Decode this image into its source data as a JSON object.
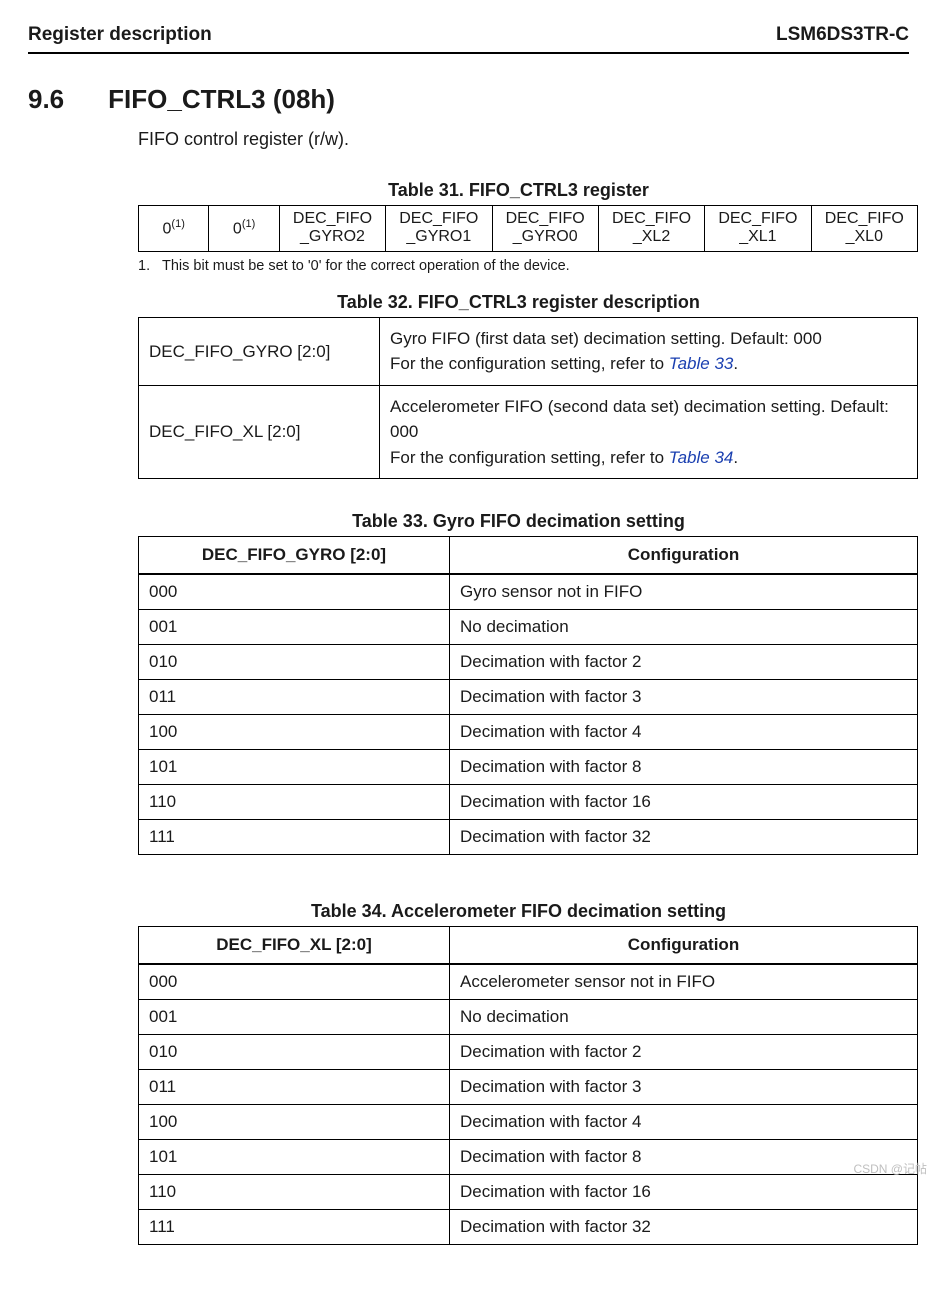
{
  "header": {
    "left": "Register description",
    "right": "LSM6DS3TR-C"
  },
  "section": {
    "number": "9.6",
    "title": "FIFO_CTRL3 (08h)",
    "subtitle": "FIFO control register (r/w)."
  },
  "table31": {
    "caption": "Table 31. FIFO_CTRL3 register",
    "cells": [
      {
        "line1": "0",
        "sup": "(1)"
      },
      {
        "line1": "0",
        "sup": "(1)"
      },
      {
        "line1": "DEC_FIFO",
        "line2": "_GYRO2"
      },
      {
        "line1": "DEC_FIFO",
        "line2": "_GYRO1"
      },
      {
        "line1": "DEC_FIFO",
        "line2": "_GYRO0"
      },
      {
        "line1": "DEC_FIFO",
        "line2": "_XL2"
      },
      {
        "line1": "DEC_FIFO",
        "line2": "_XL1"
      },
      {
        "line1": "DEC_FIFO",
        "line2": "_XL0"
      }
    ],
    "col_widths_pct": [
      9,
      9,
      13.6,
      13.6,
      13.6,
      13.6,
      13.6,
      13.6
    ]
  },
  "footnote": {
    "num": "1.",
    "text": "This bit must be set to '0' for the correct operation of the device."
  },
  "table32": {
    "caption": "Table 32. FIFO_CTRL3 register description",
    "rows": [
      {
        "name": "DEC_FIFO_GYRO [2:0]",
        "line1": "Gyro FIFO (first data set) decimation setting. Default: 000",
        "line2_a": "For the configuration setting, refer to ",
        "line2_link": "Table 33",
        "line2_b": "."
      },
      {
        "name": "DEC_FIFO_XL [2:0]",
        "line1": "Accelerometer FIFO (second data set) decimation setting. Default: 000",
        "line2_a": "For the configuration setting, refer to ",
        "line2_link": "Table 34",
        "line2_b": "."
      }
    ]
  },
  "table33": {
    "caption": "Table 33. Gyro FIFO decimation setting",
    "header": [
      "DEC_FIFO_GYRO [2:0]",
      "Configuration"
    ],
    "rows": [
      [
        "000",
        "Gyro sensor not in FIFO"
      ],
      [
        "001",
        "No decimation"
      ],
      [
        "010",
        "Decimation with factor 2"
      ],
      [
        "011",
        "Decimation with factor 3"
      ],
      [
        "100",
        "Decimation with factor 4"
      ],
      [
        "101",
        "Decimation with factor 8"
      ],
      [
        "110",
        "Decimation with factor 16"
      ],
      [
        "111",
        "Decimation with factor 32"
      ]
    ]
  },
  "table34": {
    "caption": "Table 34. Accelerometer FIFO decimation setting",
    "header": [
      "DEC_FIFO_XL [2:0]",
      "Configuration"
    ],
    "rows": [
      [
        "000",
        "Accelerometer sensor not in FIFO"
      ],
      [
        "001",
        "No decimation"
      ],
      [
        "010",
        "Decimation with factor 2"
      ],
      [
        "011",
        "Decimation with factor 3"
      ],
      [
        "100",
        "Decimation with factor 4"
      ],
      [
        "101",
        "Decimation with factor 8"
      ],
      [
        "110",
        "Decimation with factor 16"
      ],
      [
        "111",
        "Decimation with factor 32"
      ]
    ]
  },
  "watermark": "CSDN @记帖"
}
